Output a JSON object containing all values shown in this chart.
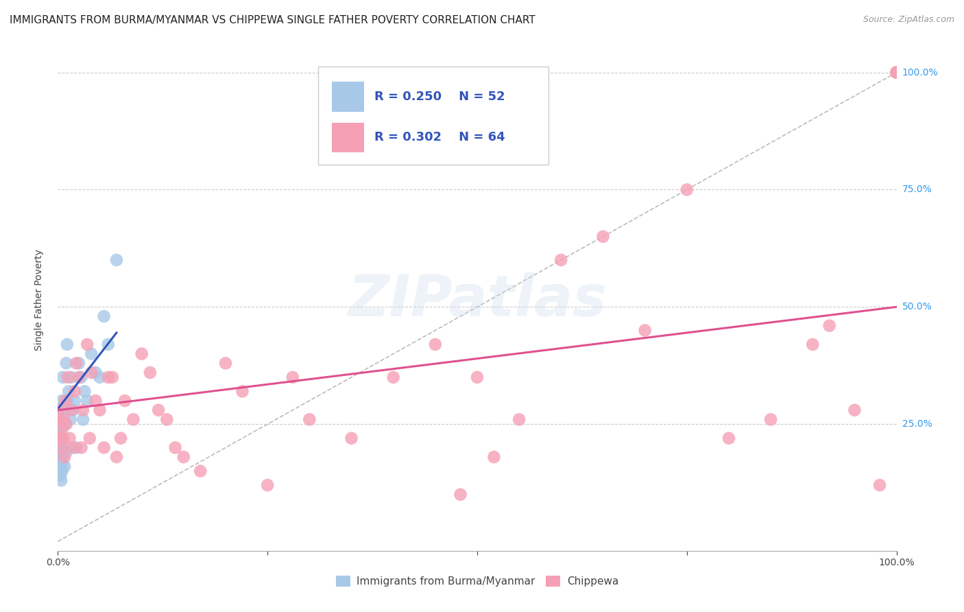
{
  "title": "IMMIGRANTS FROM BURMA/MYANMAR VS CHIPPEWA SINGLE FATHER POVERTY CORRELATION CHART",
  "source": "Source: ZipAtlas.com",
  "ylabel": "Single Father Poverty",
  "xlim": [
    0,
    1.0
  ],
  "ylim": [
    -0.02,
    1.05
  ],
  "legend_r_blue": "R = 0.250",
  "legend_n_blue": "N = 52",
  "legend_r_pink": "R = 0.302",
  "legend_n_pink": "N = 64",
  "watermark": "ZIPatlas",
  "blue_scatter_x": [
    0.001,
    0.001,
    0.001,
    0.001,
    0.001,
    0.001,
    0.002,
    0.002,
    0.002,
    0.002,
    0.002,
    0.002,
    0.002,
    0.003,
    0.003,
    0.003,
    0.003,
    0.003,
    0.004,
    0.004,
    0.004,
    0.004,
    0.005,
    0.005,
    0.005,
    0.006,
    0.006,
    0.007,
    0.007,
    0.008,
    0.009,
    0.01,
    0.01,
    0.011,
    0.012,
    0.013,
    0.015,
    0.016,
    0.018,
    0.02,
    0.022,
    0.025,
    0.028,
    0.03,
    0.032,
    0.035,
    0.04,
    0.045,
    0.05,
    0.055,
    0.06,
    0.07
  ],
  "blue_scatter_y": [
    0.18,
    0.2,
    0.22,
    0.24,
    0.25,
    0.27,
    0.15,
    0.17,
    0.19,
    0.2,
    0.22,
    0.23,
    0.26,
    0.14,
    0.16,
    0.18,
    0.2,
    0.22,
    0.13,
    0.16,
    0.18,
    0.2,
    0.15,
    0.17,
    0.3,
    0.22,
    0.35,
    0.2,
    0.28,
    0.16,
    0.25,
    0.19,
    0.38,
    0.42,
    0.3,
    0.32,
    0.26,
    0.35,
    0.28,
    0.3,
    0.2,
    0.38,
    0.35,
    0.26,
    0.32,
    0.3,
    0.4,
    0.36,
    0.35,
    0.48,
    0.42,
    0.6
  ],
  "pink_scatter_x": [
    0.001,
    0.002,
    0.003,
    0.004,
    0.005,
    0.006,
    0.007,
    0.008,
    0.009,
    0.01,
    0.012,
    0.014,
    0.016,
    0.018,
    0.02,
    0.022,
    0.025,
    0.028,
    0.03,
    0.035,
    0.038,
    0.04,
    0.045,
    0.05,
    0.055,
    0.06,
    0.065,
    0.07,
    0.075,
    0.08,
    0.09,
    0.1,
    0.11,
    0.12,
    0.13,
    0.14,
    0.15,
    0.17,
    0.2,
    0.22,
    0.25,
    0.28,
    0.3,
    0.35,
    0.4,
    0.45,
    0.5,
    0.55,
    0.6,
    0.65,
    0.7,
    0.75,
    0.8,
    0.85,
    0.9,
    0.92,
    0.95,
    0.98,
    1.0,
    1.0,
    1.0,
    1.0,
    0.48,
    0.52
  ],
  "pink_scatter_y": [
    0.28,
    0.26,
    0.22,
    0.2,
    0.24,
    0.22,
    0.26,
    0.18,
    0.3,
    0.25,
    0.35,
    0.22,
    0.28,
    0.2,
    0.32,
    0.38,
    0.35,
    0.2,
    0.28,
    0.42,
    0.22,
    0.36,
    0.3,
    0.28,
    0.2,
    0.35,
    0.35,
    0.18,
    0.22,
    0.3,
    0.26,
    0.4,
    0.36,
    0.28,
    0.26,
    0.2,
    0.18,
    0.15,
    0.38,
    0.32,
    0.12,
    0.35,
    0.26,
    0.22,
    0.35,
    0.42,
    0.35,
    0.26,
    0.6,
    0.65,
    0.45,
    0.75,
    0.22,
    0.26,
    0.42,
    0.46,
    0.28,
    0.12,
    1.0,
    1.0,
    1.0,
    1.0,
    0.1,
    0.18
  ],
  "blue_color": "#a8c8e8",
  "pink_color": "#f5a0b5",
  "blue_line_color": "#3355bb",
  "pink_line_color": "#e05090",
  "diagonal_color": "#bbbbbb",
  "grid_color": "#cccccc",
  "right_axis_color": "#3399ee",
  "title_fontsize": 11,
  "source_fontsize": 9,
  "axis_label_fontsize": 10,
  "watermark_color": "#ccdded",
  "watermark_alpha": 0.35,
  "blue_line_x": [
    0.001,
    0.07
  ],
  "blue_line_y": [
    0.285,
    0.445
  ],
  "pink_line_x": [
    0.001,
    1.0
  ],
  "pink_line_y": [
    0.28,
    0.5
  ]
}
